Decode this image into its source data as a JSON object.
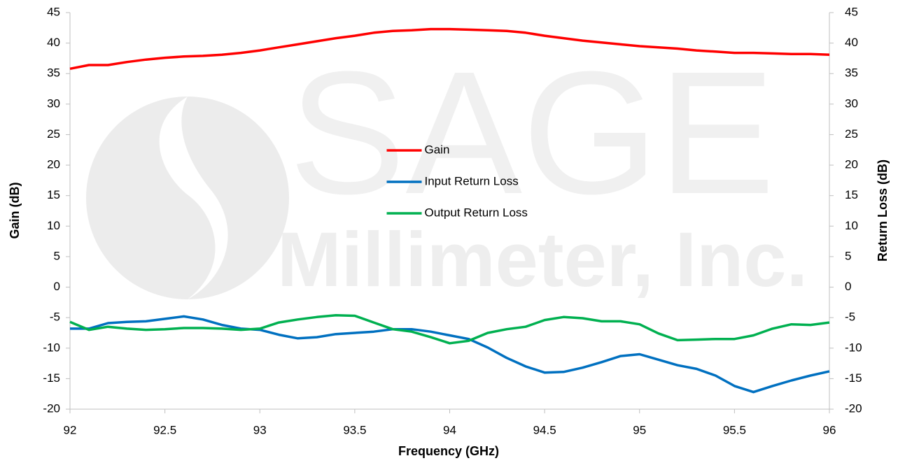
{
  "chart_data": {
    "type": "line",
    "watermark": [
      "SAGE",
      "Millimeter, Inc."
    ],
    "x_label": "Frequency (GHz)",
    "y_label": "Gain (dB)",
    "y2_label": "Return Loss (dB)",
    "x": [
      92,
      92.1,
      92.2,
      92.3,
      92.4,
      92.5,
      92.6,
      92.7,
      92.8,
      92.9,
      93,
      93.1,
      93.2,
      93.3,
      93.4,
      93.5,
      93.6,
      93.7,
      93.8,
      93.9,
      94,
      94.1,
      94.2,
      94.3,
      94.4,
      94.5,
      94.6,
      94.7,
      94.8,
      94.9,
      95,
      95.1,
      95.2,
      95.3,
      95.4,
      95.5,
      95.6,
      95.7,
      95.8,
      95.9,
      96
    ],
    "series": [
      {
        "name": "Gain",
        "color": "#ff0000",
        "axis": "y",
        "values": [
          35.8,
          36.4,
          36.4,
          36.9,
          37.3,
          37.6,
          37.8,
          37.9,
          38.1,
          38.4,
          38.8,
          39.3,
          39.8,
          40.3,
          40.8,
          41.2,
          41.7,
          42.0,
          42.1,
          42.3,
          42.3,
          42.2,
          42.1,
          42.0,
          41.7,
          41.2,
          40.8,
          40.4,
          40.1,
          39.8,
          39.5,
          39.3,
          39.1,
          38.8,
          38.6,
          38.4,
          38.4,
          38.3,
          38.2,
          38.2,
          38.1
        ]
      },
      {
        "name": "Input Return Loss",
        "color": "#0070c0",
        "axis": "y2",
        "values": [
          -6.8,
          -6.8,
          -5.9,
          -5.7,
          -5.6,
          -5.2,
          -4.8,
          -5.3,
          -6.2,
          -6.8,
          -7.0,
          -7.8,
          -8.4,
          -8.2,
          -7.7,
          -7.5,
          -7.3,
          -6.9,
          -6.9,
          -7.3,
          -7.9,
          -8.5,
          -9.9,
          -11.6,
          -13.0,
          -14.0,
          -13.9,
          -13.2,
          -12.3,
          -11.3,
          -11.0,
          -11.9,
          -12.8,
          -13.4,
          -14.5,
          -16.2,
          -17.2,
          -16.2,
          -15.3,
          -14.5,
          -13.8
        ]
      },
      {
        "name": "Output Return Loss",
        "color": "#00b050",
        "axis": "y2",
        "values": [
          -5.7,
          -7.0,
          -6.5,
          -6.8,
          -7.0,
          -6.9,
          -6.7,
          -6.7,
          -6.8,
          -7.0,
          -6.8,
          -5.8,
          -5.3,
          -4.9,
          -4.6,
          -4.7,
          -5.8,
          -6.9,
          -7.3,
          -8.2,
          -9.2,
          -8.8,
          -7.5,
          -6.9,
          -6.5,
          -5.4,
          -4.9,
          -5.1,
          -5.6,
          -5.6,
          -6.1,
          -7.6,
          -8.7,
          -8.6,
          -8.5,
          -8.5,
          -7.9,
          -6.8,
          -6.1,
          -6.2,
          -5.8
        ]
      }
    ],
    "xlim": [
      92,
      96
    ],
    "xticks": [
      92,
      92.5,
      93,
      93.5,
      94,
      94.5,
      95,
      95.5,
      96
    ],
    "ylim": [
      -20,
      45
    ],
    "yticks": [
      -20,
      -15,
      -10,
      -5,
      0,
      5,
      10,
      15,
      20,
      25,
      30,
      35,
      40,
      45
    ],
    "y2lim": [
      -20,
      45
    ],
    "y2ticks": [
      -20,
      -15,
      -10,
      -5,
      0,
      5,
      10,
      15,
      20,
      25,
      30,
      35,
      40,
      45
    ],
    "grid": false,
    "legend": "center"
  }
}
